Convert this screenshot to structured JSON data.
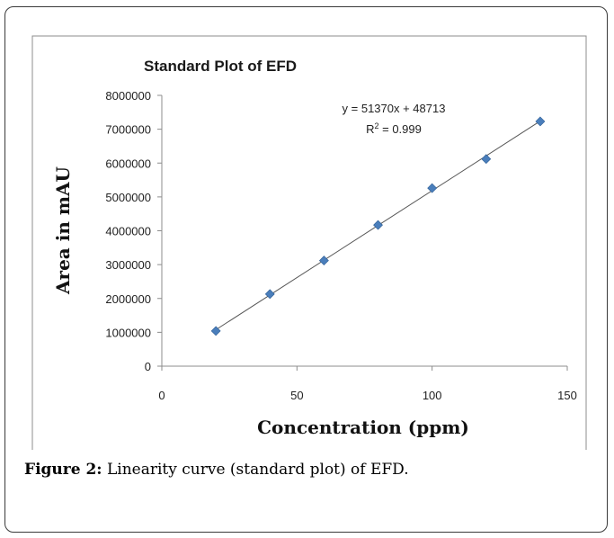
{
  "chart_data": {
    "type": "scatter",
    "title": "Standard Plot of EFD",
    "xlabel": "Concentration (ppm)",
    "ylabel": "Area in mAU",
    "xlim": [
      0,
      150
    ],
    "ylim": [
      0,
      8000000
    ],
    "x_ticks": [
      0,
      50,
      100,
      150
    ],
    "y_ticks": [
      0,
      1000000,
      2000000,
      3000000,
      4000000,
      5000000,
      6000000,
      7000000,
      8000000
    ],
    "x_tick_labels": [
      "0",
      "50",
      "100",
      "150"
    ],
    "y_tick_labels": [
      "0",
      "1000000",
      "2000000",
      "3000000",
      "4000000",
      "5000000",
      "6000000",
      "7000000",
      "8000000"
    ],
    "series": [
      {
        "x": [
          20,
          40,
          60,
          80,
          100,
          120,
          140
        ],
        "y": [
          1040000,
          2130000,
          3120000,
          4170000,
          5260000,
          6120000,
          7230000
        ]
      }
    ],
    "trendline": {
      "slope": 51370,
      "intercept": 48713,
      "x_range": [
        20,
        140
      ]
    },
    "annotations": {
      "equation": "y = 51370x + 48713",
      "r_squared_prefix": "R",
      "r_squared_sup": "2",
      "r_squared_value": " = 0.999"
    },
    "grid": false,
    "legend": "none",
    "marker_color": "#4a7ebb",
    "line_color": "#555555"
  },
  "caption": {
    "label": "Figure 2:",
    "text": " Linearity curve (standard plot) of EFD."
  }
}
